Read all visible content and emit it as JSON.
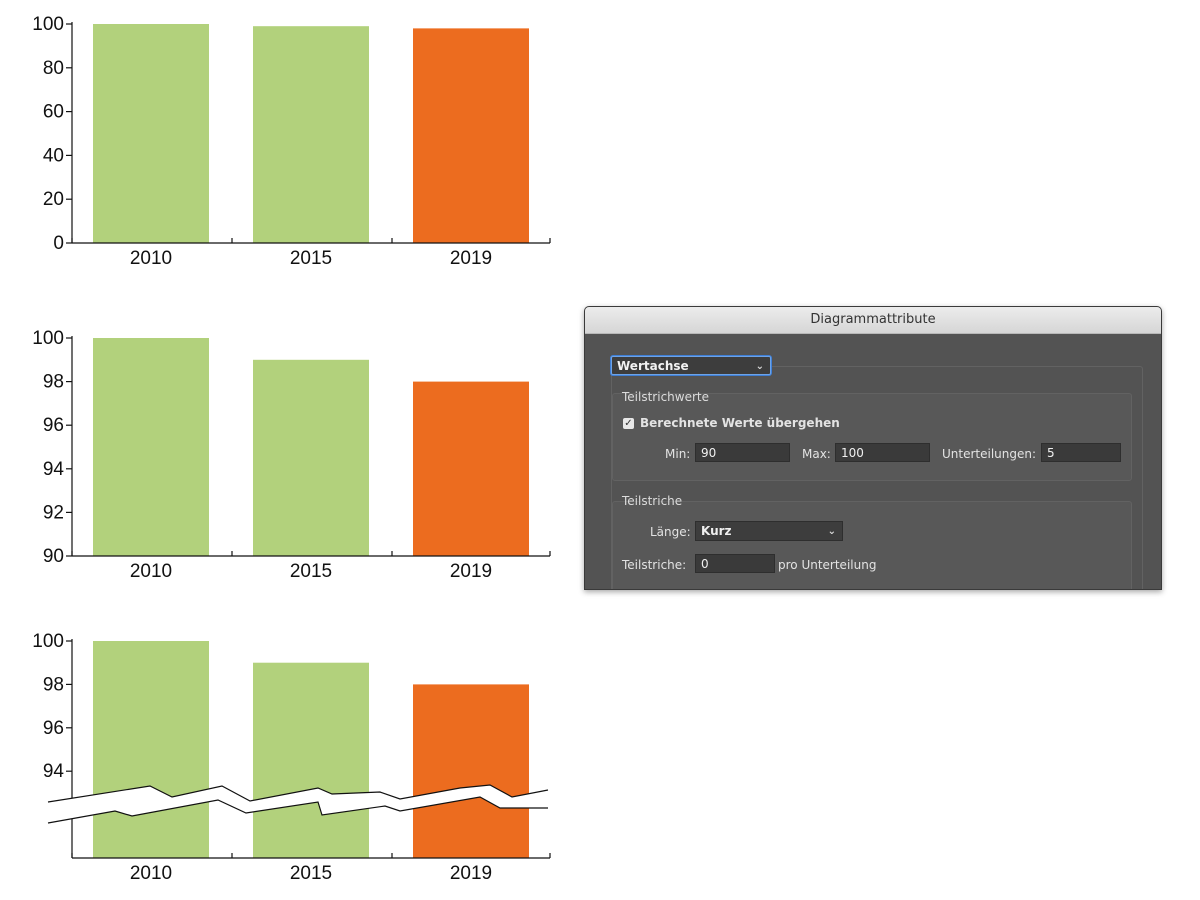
{
  "colors": {
    "green": "#b2d17c",
    "orange": "#ec6c1f",
    "axis": "#111111"
  },
  "chart_data": [
    {
      "type": "bar",
      "categories": [
        "2010",
        "2015",
        "2019"
      ],
      "values": [
        100,
        99,
        98
      ],
      "ylim": [
        0,
        100
      ],
      "yticks": [
        "0",
        "20",
        "40",
        "60",
        "80",
        "100"
      ],
      "bar_colors": [
        "green",
        "green",
        "orange"
      ],
      "axis_break": false
    },
    {
      "type": "bar",
      "categories": [
        "2010",
        "2015",
        "2019"
      ],
      "values": [
        100,
        99,
        98
      ],
      "ylim": [
        90,
        100
      ],
      "yticks": [
        "90",
        "92",
        "94",
        "96",
        "98",
        "100"
      ],
      "bar_colors": [
        "green",
        "green",
        "orange"
      ],
      "axis_break": false
    },
    {
      "type": "bar",
      "categories": [
        "2010",
        "2015",
        "2019"
      ],
      "values": [
        100,
        99,
        98
      ],
      "ylim": [
        90,
        100
      ],
      "yticks": [
        "94",
        "96",
        "98",
        "100"
      ],
      "bar_colors": [
        "green",
        "green",
        "orange"
      ],
      "axis_break": true
    }
  ],
  "dialog": {
    "title": "Diagrammattribute",
    "axis_select": "Wertachse",
    "tick_values_group": "Teilstrichwerte",
    "override_checkbox": {
      "label": "Berechnete Werte übergehen",
      "checked": true
    },
    "min_label": "Min:",
    "min_value": "90",
    "max_label": "Max:",
    "max_value": "100",
    "divisions_label": "Unterteilungen:",
    "divisions_value": "5",
    "ticks_group": "Teilstriche",
    "length_label": "Länge:",
    "length_value": "Kurz",
    "ticks_label": "Teilstriche:",
    "ticks_value": "0",
    "per_division_label": "pro Unterteilung",
    "checkmark_icon": "checkmark-icon",
    "dropdown_icon": "chevron-down-icon"
  }
}
